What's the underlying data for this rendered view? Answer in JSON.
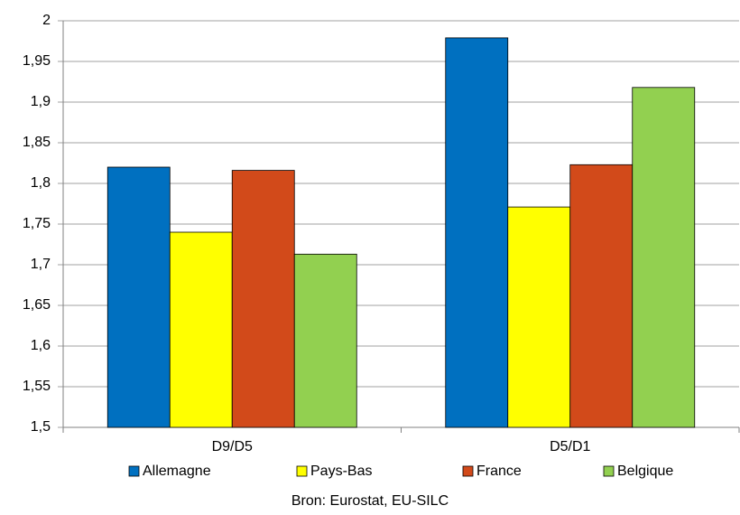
{
  "chart_data": {
    "type": "bar",
    "categories": [
      "D9/D5",
      "D5/D1"
    ],
    "series": [
      {
        "name": "Allemagne",
        "color": "#0070c0",
        "values": [
          1.82,
          1.979
        ]
      },
      {
        "name": "Pays-Bas",
        "color": "#ffff00",
        "values": [
          1.74,
          1.771
        ]
      },
      {
        "name": "France",
        "color": "#d24a1a",
        "values": [
          1.816,
          1.823
        ]
      },
      {
        "name": "Belgique",
        "color": "#92d050",
        "values": [
          1.713,
          1.918
        ]
      }
    ],
    "ylim": [
      1.5,
      2
    ],
    "yticks": [
      {
        "value": 1.5,
        "label": "1,5"
      },
      {
        "value": 1.55,
        "label": "1,55"
      },
      {
        "value": 1.6,
        "label": "1,6"
      },
      {
        "value": 1.65,
        "label": "1,65"
      },
      {
        "value": 1.7,
        "label": "1,7"
      },
      {
        "value": 1.75,
        "label": "1,75"
      },
      {
        "value": 1.8,
        "label": "1,8"
      },
      {
        "value": 1.85,
        "label": "1,85"
      },
      {
        "value": 1.9,
        "label": "1,9"
      },
      {
        "value": 1.95,
        "label": "1,95"
      },
      2
    ],
    "grid": true,
    "legend": "bottom",
    "source": "Bron: Eurostat, EU-SILC"
  }
}
